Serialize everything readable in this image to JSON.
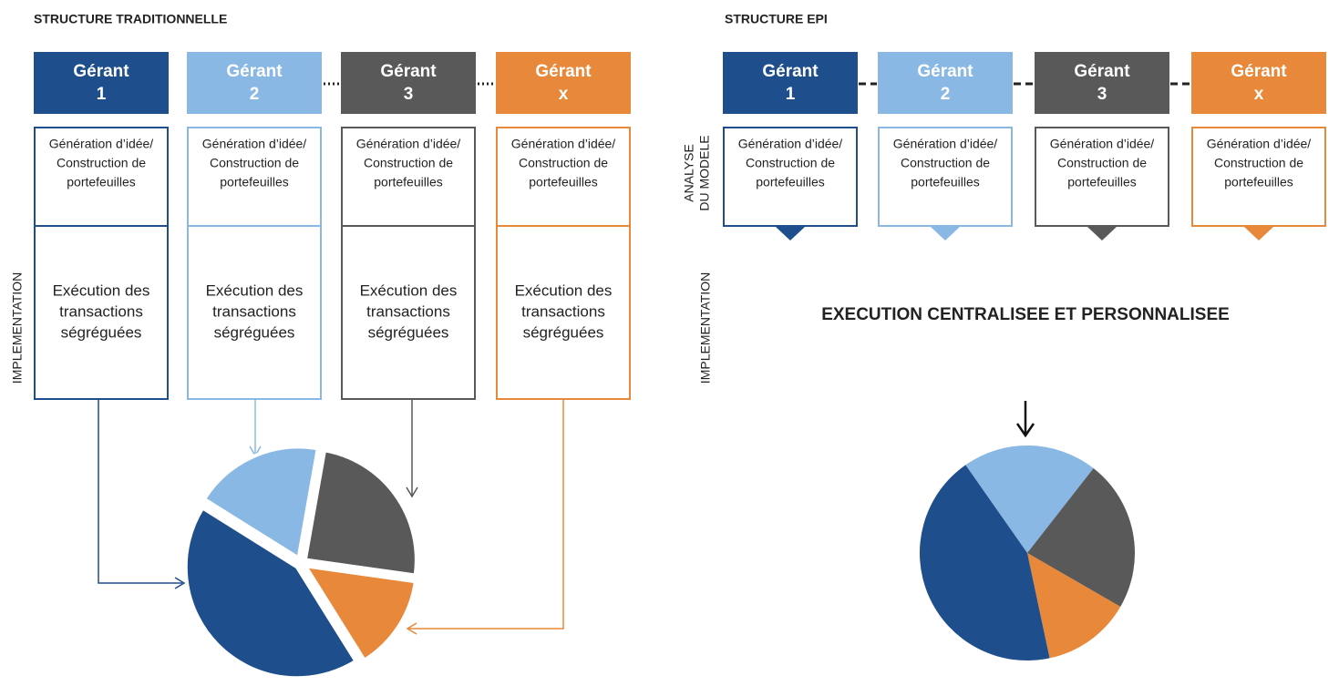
{
  "left": {
    "title": "STRUCTURE TRADITIONNELLE",
    "side_label": "IMPLEMENTATION",
    "managers": [
      {
        "name": "Gérant",
        "id": "1",
        "idea": [
          "Génération d’idée/",
          "Construction de",
          "portefeuilles"
        ],
        "execution": [
          "Exécution des",
          "transactions",
          "ségréguées"
        ]
      },
      {
        "name": "Gérant",
        "id": "2",
        "idea": [
          "Génération d’idée/",
          "Construction de",
          "portefeuilles"
        ],
        "execution": [
          "Exécution des",
          "transactions",
          "ségréguées"
        ]
      },
      {
        "name": "Gérant",
        "id": "3",
        "idea": [
          "Génération d’idée/",
          "Construction de",
          "portefeuilles"
        ],
        "execution": [
          "Exécution des",
          "transactions",
          "ségréguées"
        ]
      },
      {
        "name": "Gérant",
        "id": "x",
        "idea": [
          "Génération d’idée/",
          "Construction de",
          "portefeuilles"
        ],
        "execution": [
          "Exécution des",
          "transactions",
          "ségréguées"
        ]
      }
    ]
  },
  "right": {
    "title": "STRUCTURE EPI",
    "analysis_label": [
      "ANALYSE",
      "DU MODELE"
    ],
    "side_label": "IMPLEMENTATION",
    "execution": "EXECUTION CENTRALISEE ET PERSONNALISEE",
    "managers": [
      {
        "name": "Gérant",
        "id": "1",
        "idea": [
          "Génération d’idée/",
          "Construction de",
          "portefeuilles"
        ]
      },
      {
        "name": "Gérant",
        "id": "2",
        "idea": [
          "Génération d’idée/",
          "Construction de",
          "portefeuilles"
        ]
      },
      {
        "name": "Gérant",
        "id": "3",
        "idea": [
          "Génération d’idée/",
          "Construction de",
          "portefeuilles"
        ]
      },
      {
        "name": "Gérant",
        "id": "x",
        "idea": [
          "Génération d’idée/",
          "Construction de",
          "portefeuilles"
        ]
      }
    ]
  }
}
